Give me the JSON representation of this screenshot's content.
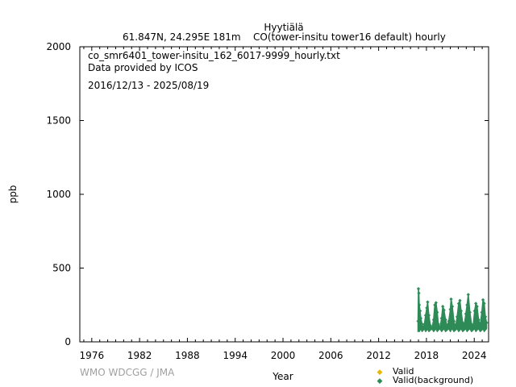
{
  "header": {
    "station": "Hyytiälä",
    "coords": "61.847N, 24.295E 181m",
    "species": "CO(tower-insitu tower16 default) hourly"
  },
  "info": {
    "filename": "co_smr6401_tower-insitu_162_6017-9999_hourly.txt",
    "provider": "Data provided by ICOS",
    "period": "2016/12/13 - 2025/08/19"
  },
  "credit": "WMO WDCGG / JMA",
  "legend": [
    {
      "label": "Valid",
      "color": "#e6b800"
    },
    {
      "label": "Valid(background)",
      "color": "#2e8b57"
    }
  ],
  "chart_data": {
    "type": "scatter",
    "xlabel": "Year",
    "ylabel": "ppb",
    "xlim": [
      1974.5,
      2025.8
    ],
    "ylim": [
      0,
      2000
    ],
    "xticks": [
      1976,
      1982,
      1988,
      1994,
      2000,
      2006,
      2012,
      2018,
      2024
    ],
    "yticks": [
      0,
      500,
      1000,
      1500,
      2000
    ],
    "series": [
      {
        "name": "Valid(background)",
        "color": "#2e8b57",
        "x": [
          2016.95,
          2017.0,
          2017.05,
          2017.1,
          2017.2,
          2017.3,
          2017.45,
          2017.6,
          2017.75,
          2017.9,
          2018.05,
          2018.15,
          2018.3,
          2018.5,
          2018.7,
          2018.9,
          2019.05,
          2019.2,
          2019.35,
          2019.5,
          2019.7,
          2019.9,
          2020.05,
          2020.2,
          2020.4,
          2020.6,
          2020.8,
          2021.0,
          2021.1,
          2021.25,
          2021.45,
          2021.65,
          2021.85,
          2022.05,
          2022.2,
          2022.35,
          2022.55,
          2022.75,
          2022.95,
          2023.1,
          2023.25,
          2023.45,
          2023.65,
          2023.85,
          2024.05,
          2024.2,
          2024.35,
          2024.55,
          2024.75,
          2024.95,
          2025.1,
          2025.25,
          2025.4,
          2025.55
        ],
        "y": [
          140,
          360,
          330,
          250,
          210,
          160,
          120,
          95,
          120,
          180,
          230,
          270,
          180,
          110,
          90,
          150,
          250,
          265,
          200,
          120,
          95,
          160,
          240,
          215,
          150,
          105,
          140,
          220,
          290,
          240,
          140,
          100,
          170,
          260,
          280,
          210,
          130,
          115,
          190,
          250,
          320,
          200,
          120,
          100,
          210,
          260,
          240,
          150,
          110,
          200,
          285,
          260,
          170,
          130
        ]
      }
    ]
  }
}
